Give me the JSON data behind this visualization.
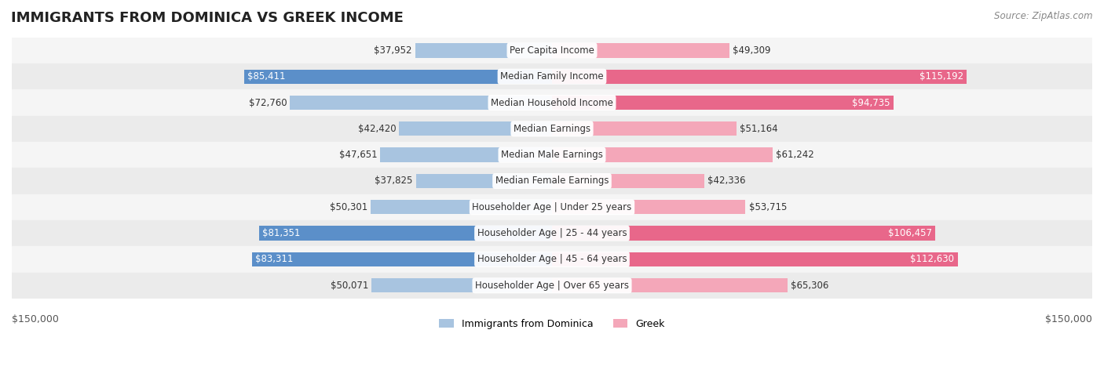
{
  "title": "IMMIGRANTS FROM DOMINICA VS GREEK INCOME",
  "source": "Source: ZipAtlas.com",
  "categories": [
    "Per Capita Income",
    "Median Family Income",
    "Median Household Income",
    "Median Earnings",
    "Median Male Earnings",
    "Median Female Earnings",
    "Householder Age | Under 25 years",
    "Householder Age | 25 - 44 years",
    "Householder Age | 45 - 64 years",
    "Householder Age | Over 65 years"
  ],
  "dominica_values": [
    37952,
    85411,
    72760,
    42420,
    47651,
    37825,
    50301,
    81351,
    83311,
    50071
  ],
  "greek_values": [
    49309,
    115192,
    94735,
    51164,
    61242,
    42336,
    53715,
    106457,
    112630,
    65306
  ],
  "dominica_labels": [
    "$37,952",
    "$85,411",
    "$72,760",
    "$42,420",
    "$47,651",
    "$37,825",
    "$50,301",
    "$81,351",
    "$83,311",
    "$50,071"
  ],
  "greek_labels": [
    "$49,309",
    "$115,192",
    "$94,735",
    "$51,164",
    "$61,242",
    "$42,336",
    "$53,715",
    "$106,457",
    "$112,630",
    "$65,306"
  ],
  "dominica_color_light": "#a8c4e0",
  "dominica_color_dark": "#5b8fc9",
  "greek_color_light": "#f4a7b9",
  "greek_color_dark": "#e8678a",
  "max_value": 150000,
  "bg_color": "#ffffff",
  "bar_height": 0.55,
  "legend_dominica": "Immigrants from Dominica",
  "legend_greek": "Greek",
  "xlabel_left": "$150,000",
  "xlabel_right": "$150,000",
  "title_fontsize": 13,
  "label_fontsize": 8.5,
  "category_fontsize": 8.5,
  "value_threshold": 80000,
  "row_color_even": "#f5f5f5",
  "row_color_odd": "#ebebeb"
}
